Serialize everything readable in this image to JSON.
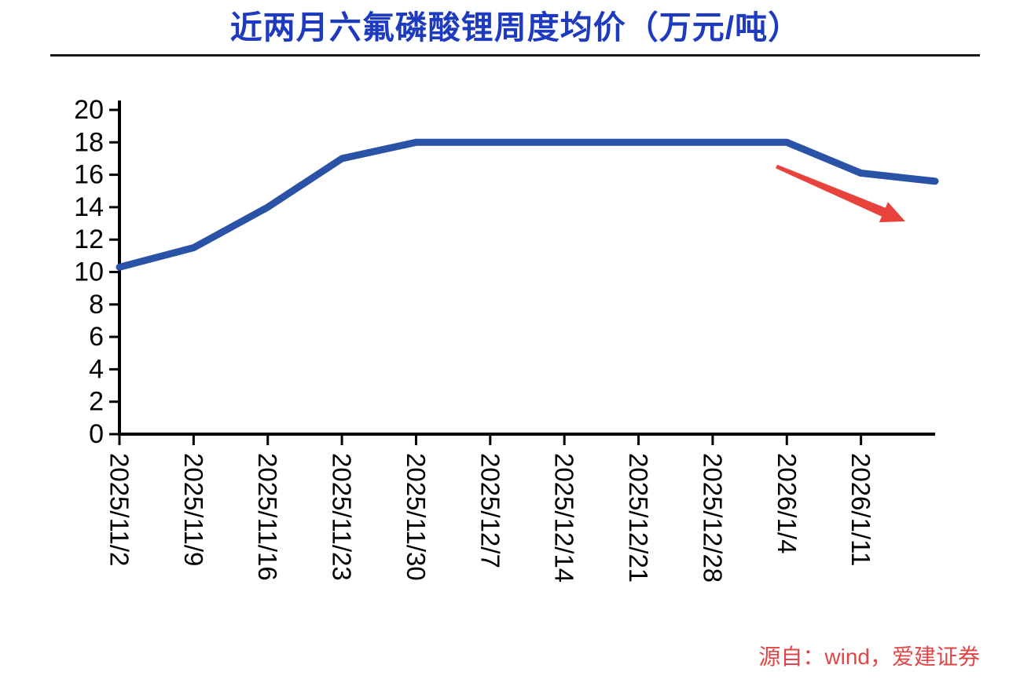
{
  "header": {
    "title": "近两月六氟磷酸锂周度均价（万元/吨）",
    "title_color": "#1E3BBF",
    "rule_color": "#1A1A1A"
  },
  "source": {
    "text": "源自：wind，爱建证券",
    "color": "#E04646"
  },
  "chart_data": {
    "type": "line",
    "title": "近两月六氟磷酸锂周度均价（万元/吨）",
    "xlabel": "",
    "ylabel": "",
    "categories": [
      "2025/11/2",
      "2025/11/9",
      "2025/11/16",
      "2025/11/23",
      "2025/11/30",
      "2025/12/7",
      "2025/12/14",
      "2025/12/21",
      "2025/12/28",
      "2026/1/4",
      "2026/1/11"
    ],
    "values": [
      10.3,
      11.5,
      14.0,
      17.0,
      18.0,
      18.0,
      18.0,
      18.0,
      18.0,
      18.0,
      16.1,
      15.6
    ],
    "ylim": [
      0,
      20
    ],
    "yticks": [
      0,
      2,
      4,
      6,
      8,
      10,
      12,
      14,
      16,
      18,
      20
    ],
    "grid": false,
    "legend": "none",
    "line_color": "#2A52A6",
    "axis_color": "#000000",
    "tick_label_color": "#000000",
    "annotation": {
      "type": "down-right-arrow",
      "color": "#E8423C"
    },
    "layout_notes": "12 weekly points; 12th point extends past the last labeled tick (2026/1/11); x tick labels rotated 90 degrees reading top-to-bottom"
  }
}
